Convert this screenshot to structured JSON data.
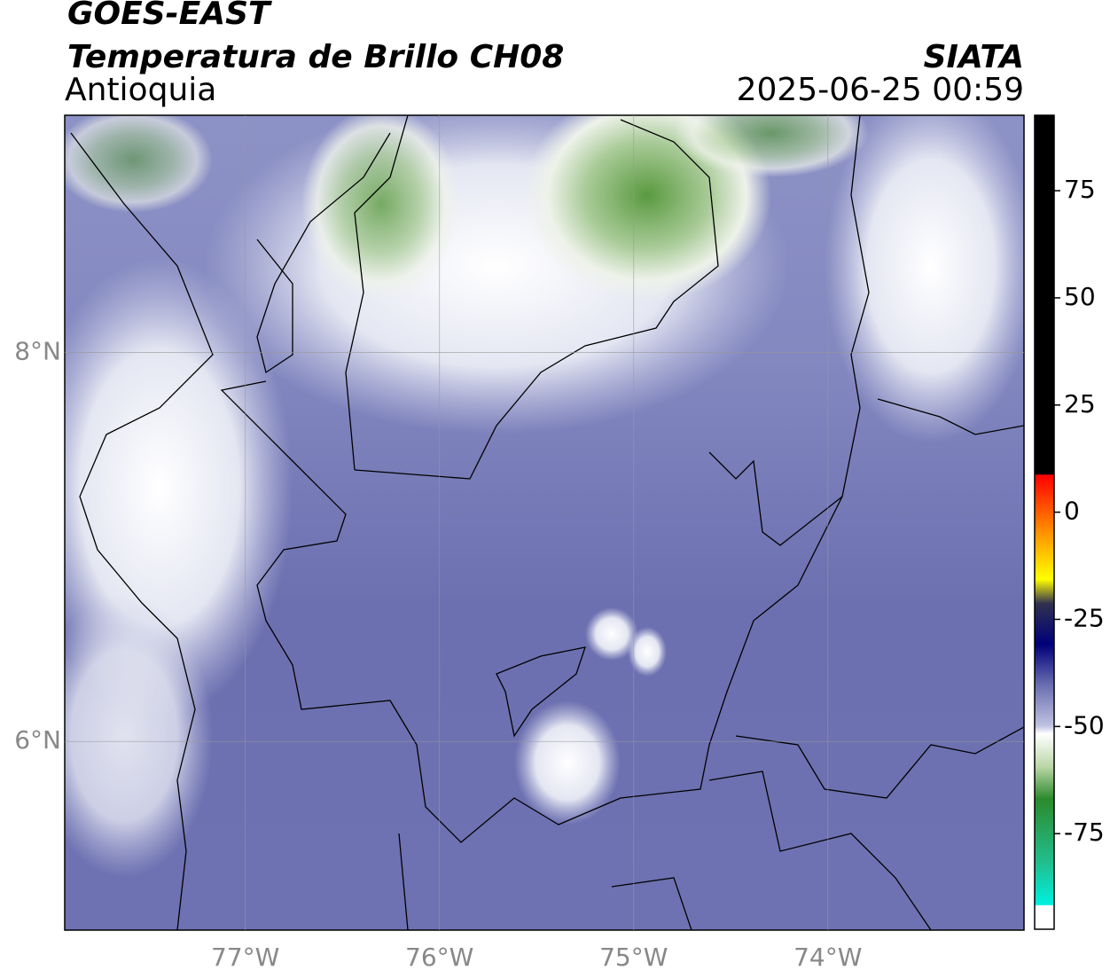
{
  "header": {
    "source": "GOES-EAST",
    "product": "Temperatura de Brillo CH08",
    "region": "Antioquia",
    "agency": "SIATA",
    "datetime": "2025-06-25 00:59"
  },
  "map": {
    "xlim": [
      -77.93,
      -72.99
    ],
    "ylim": [
      5.03,
      9.22
    ],
    "xticks": [
      {
        "value": -77,
        "label": "77°W"
      },
      {
        "value": -76,
        "label": "76°W"
      },
      {
        "value": -75,
        "label": "75°W"
      },
      {
        "value": -74,
        "label": "74°W"
      }
    ],
    "yticks": [
      {
        "value": 8,
        "label": "8°N"
      },
      {
        "value": 6,
        "label": "6°N"
      }
    ]
  },
  "colorbar": {
    "lim": [
      -97.3,
      92.6
    ],
    "ticks": [
      75,
      50,
      25,
      0,
      -25,
      -50,
      -75
    ]
  }
}
